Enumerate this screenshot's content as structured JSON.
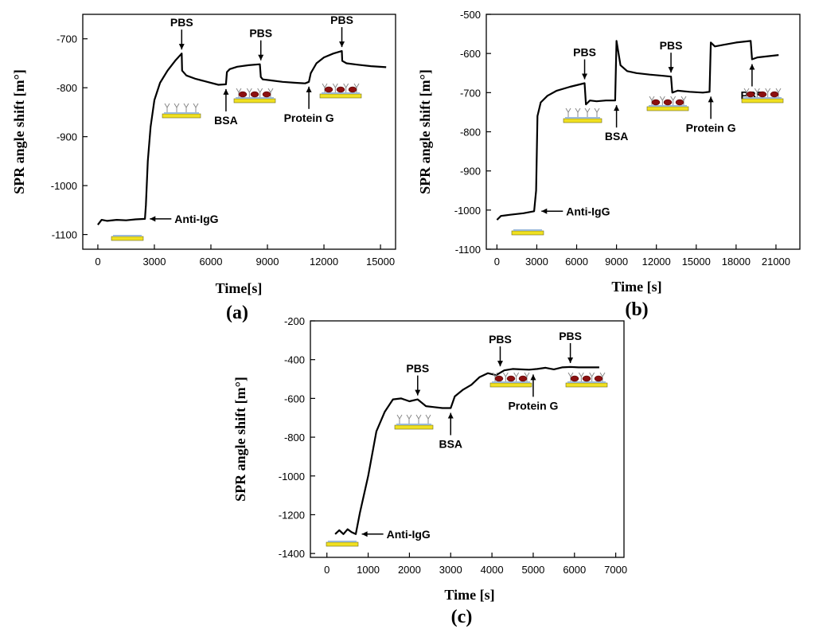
{
  "figure": {
    "panels": [
      {
        "id": "a",
        "label": "(a)"
      },
      {
        "id": "b",
        "label": "(b)"
      },
      {
        "id": "c",
        "label": "(c)"
      }
    ]
  },
  "chart_data": [
    {
      "id": "a",
      "panel_label": "(a)",
      "type": "line",
      "title": "",
      "xlabel": "Time[s]",
      "ylabel": "SPR angle shift [m°]",
      "xlim": [
        -800,
        15800
      ],
      "ylim": [
        -1130,
        -650
      ],
      "xticks": [
        0,
        3000,
        6000,
        9000,
        12000,
        15000
      ],
      "yticks": [
        -700,
        -800,
        -900,
        -1000,
        -1100
      ],
      "series": [
        {
          "name": "SPR response",
          "x": [
            0,
            200,
            500,
            1000,
            1500,
            2000,
            2500,
            2550,
            2650,
            2800,
            3000,
            3300,
            3700,
            4100,
            4450,
            4470,
            4700,
            5200,
            5800,
            6400,
            6800,
            6850,
            7000,
            7400,
            8000,
            8600,
            8650,
            8750,
            9200,
            9800,
            10500,
            11000,
            11200,
            11300,
            11600,
            12000,
            12500,
            12950,
            12970,
            13200,
            13800,
            14500,
            15300
          ],
          "y": [
            -1080,
            -1070,
            -1072,
            -1070,
            -1071,
            -1069,
            -1068,
            -1040,
            -950,
            -880,
            -825,
            -790,
            -765,
            -745,
            -730,
            -765,
            -775,
            -782,
            -788,
            -794,
            -793,
            -768,
            -762,
            -757,
            -754,
            -752,
            -778,
            -783,
            -785,
            -788,
            -790,
            -791,
            -788,
            -770,
            -750,
            -738,
            -730,
            -725,
            -745,
            -750,
            -753,
            -756,
            -758
          ]
        }
      ],
      "annotations": [
        {
          "text": "PBS",
          "x": 4450,
          "y": -730,
          "arrow": "down"
        },
        {
          "text": "PBS",
          "x": 8650,
          "y": -752,
          "arrow": "down"
        },
        {
          "text": "PBS",
          "x": 12950,
          "y": -725,
          "arrow": "down"
        },
        {
          "text": "BSA",
          "x": 6800,
          "y": -793,
          "arrow": "up"
        },
        {
          "text": "Protein G",
          "x": 11200,
          "y": -788,
          "arrow": "up"
        },
        {
          "text": "Anti-IgG",
          "x": 2550,
          "y": -1068,
          "arrow": "left"
        }
      ]
    },
    {
      "id": "b",
      "panel_label": "(b)",
      "type": "line",
      "title": "",
      "xlabel": "Time [s]",
      "ylabel": "SPR angle shift [m°]",
      "xlim": [
        -800,
        22800
      ],
      "ylim": [
        -1100,
        -500
      ],
      "xticks": [
        0,
        3000,
        6000,
        9000,
        12000,
        15000,
        18000,
        21000
      ],
      "yticks": [
        -500,
        -600,
        -700,
        -800,
        -900,
        -1000,
        -1100
      ],
      "series": [
        {
          "name": "SPR response",
          "x": [
            0,
            300,
            1000,
            2000,
            2800,
            2950,
            3050,
            3300,
            3800,
            4500,
            5500,
            6600,
            6700,
            7000,
            7500,
            8200,
            8900,
            9000,
            9300,
            9800,
            10500,
            11500,
            12500,
            13100,
            13200,
            13600,
            14500,
            15500,
            16000,
            16100,
            16400,
            17000,
            18000,
            19100,
            19200,
            19600,
            20400,
            21200
          ],
          "y": [
            -1025,
            -1015,
            -1012,
            -1008,
            -1003,
            -950,
            -760,
            -725,
            -708,
            -695,
            -685,
            -676,
            -730,
            -720,
            -722,
            -720,
            -720,
            -568,
            -630,
            -645,
            -650,
            -654,
            -657,
            -659,
            -700,
            -695,
            -698,
            -700,
            -698,
            -572,
            -582,
            -578,
            -572,
            -568,
            -615,
            -610,
            -607,
            -604
          ]
        }
      ],
      "annotations": [
        {
          "text": "PBS",
          "x": 6600,
          "y": -676,
          "arrow": "down"
        },
        {
          "text": "PBS",
          "x": 13100,
          "y": -659,
          "arrow": "down"
        },
        {
          "text": "PBS",
          "x": 19200,
          "y": -615,
          "arrow": "up"
        },
        {
          "text": "BSA",
          "x": 9000,
          "y": -720,
          "arrow": "up"
        },
        {
          "text": "Protein G",
          "x": 16100,
          "y": -698,
          "arrow": "up"
        },
        {
          "text": "Anti-IgG",
          "x": 3050,
          "y": -1003,
          "arrow": "left"
        }
      ]
    },
    {
      "id": "c",
      "panel_label": "(c)",
      "type": "line",
      "title": "",
      "xlabel": "Time [s]",
      "ylabel": "SPR angle shift [m°]",
      "xlim": [
        -400,
        7200
      ],
      "ylim": [
        -1420,
        -200
      ],
      "xticks": [
        0,
        1000,
        2000,
        3000,
        4000,
        5000,
        6000,
        7000
      ],
      "yticks": [
        -200,
        -400,
        -600,
        -800,
        -1000,
        -1200,
        -1400
      ],
      "series": [
        {
          "name": "SPR response",
          "x": [
            200,
            300,
            400,
            500,
            600,
            700,
            800,
            1000,
            1200,
            1400,
            1600,
            1800,
            2000,
            2200,
            2400,
            2600,
            2800,
            3000,
            3100,
            3300,
            3500,
            3700,
            3900,
            4100,
            4300,
            4500,
            4700,
            4900,
            5100,
            5300,
            5500,
            5700,
            5900,
            6100,
            6300,
            6600
          ],
          "y": [
            -1300,
            -1280,
            -1300,
            -1275,
            -1290,
            -1300,
            -1190,
            -1000,
            -770,
            -670,
            -605,
            -600,
            -615,
            -605,
            -640,
            -645,
            -650,
            -650,
            -590,
            -555,
            -530,
            -490,
            -470,
            -480,
            -455,
            -448,
            -450,
            -452,
            -448,
            -442,
            -450,
            -440,
            -438,
            -440,
            -440,
            -440
          ]
        }
      ],
      "annotations": [
        {
          "text": "PBS",
          "x": 2200,
          "y": -605,
          "arrow": "down"
        },
        {
          "text": "PBS",
          "x": 4200,
          "y": -455,
          "arrow": "down"
        },
        {
          "text": "PBS",
          "x": 5900,
          "y": -438,
          "arrow": "down"
        },
        {
          "text": "BSA",
          "x": 3000,
          "y": -650,
          "arrow": "up"
        },
        {
          "text": "Protein G",
          "x": 5000,
          "y": -452,
          "arrow": "up"
        },
        {
          "text": "Anti-IgG",
          "x": 750,
          "y": -1300,
          "arrow": "left"
        }
      ]
    }
  ]
}
